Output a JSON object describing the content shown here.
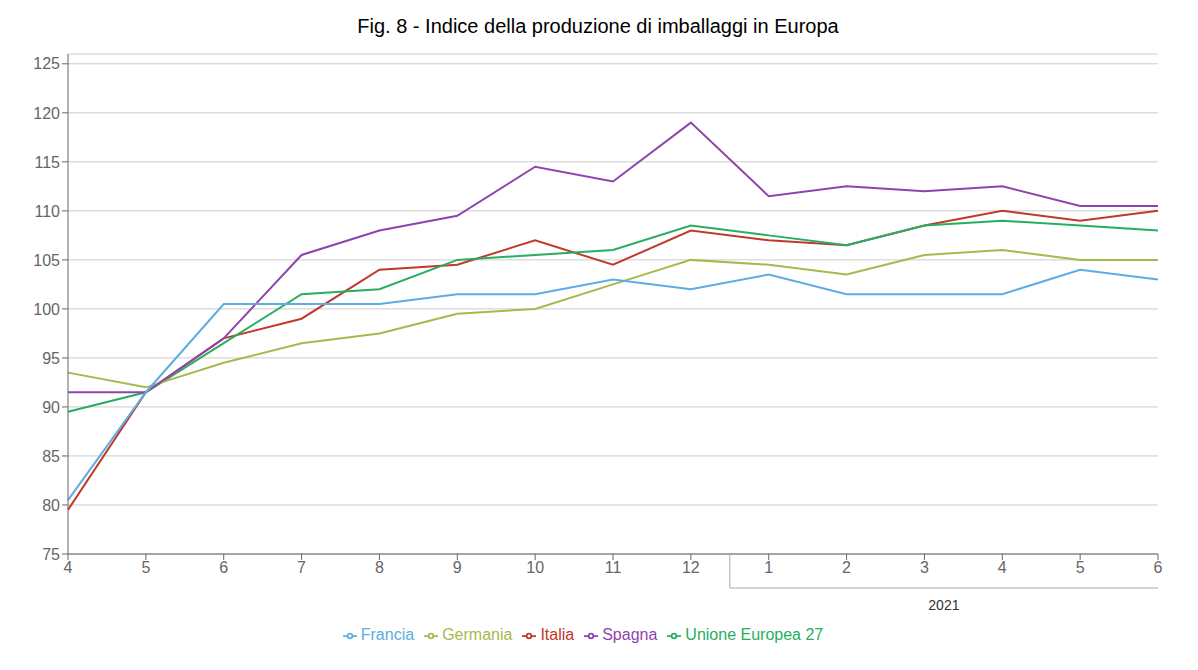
{
  "chart_data": {
    "type": "line",
    "title": "Fig. 8 - Indice della produzione di imballaggi in Europa",
    "categories": [
      "4",
      "5",
      "6",
      "7",
      "8",
      "9",
      "10",
      "11",
      "12",
      "1",
      "2",
      "3",
      "4",
      "5",
      "6"
    ],
    "series": [
      {
        "name": "Italia",
        "color": "#c0392b",
        "values": [
          79.5,
          91.5,
          97.0,
          99.0,
          104.0,
          104.5,
          107.0,
          104.5,
          108.0,
          107.0,
          106.5,
          108.5,
          110.0,
          109.0,
          110.0
        ]
      },
      {
        "name": "Unione Europea 27",
        "color": "#27ae60",
        "values": [
          89.5,
          91.5,
          96.5,
          101.5,
          102.0,
          105.0,
          105.5,
          106.0,
          108.5,
          107.5,
          106.5,
          108.5,
          109.0,
          108.5,
          108.0
        ]
      },
      {
        "name": "Germania",
        "color": "#a8b84b",
        "values": [
          93.5,
          92.0,
          94.5,
          96.5,
          97.5,
          99.5,
          100.0,
          102.5,
          105.0,
          104.5,
          103.5,
          105.5,
          106.0,
          105.0,
          105.0
        ]
      },
      {
        "name": "Spagna",
        "color": "#8e44ad",
        "values": [
          91.5,
          91.5,
          97.0,
          105.5,
          108.0,
          109.5,
          114.5,
          113.0,
          119.0,
          111.5,
          112.5,
          112.0,
          112.5,
          110.5,
          110.5
        ]
      },
      {
        "name": "Francia",
        "color": "#5dade2",
        "values": [
          80.5,
          91.5,
          100.5,
          100.5,
          100.5,
          101.5,
          101.5,
          103.0,
          102.0,
          103.5,
          101.5,
          101.5,
          101.5,
          104.0,
          103.0
        ]
      }
    ],
    "ylim": [
      75,
      126
    ],
    "yticks": [
      75,
      80,
      85,
      90,
      95,
      100,
      105,
      110,
      115,
      120,
      125
    ],
    "grid": true,
    "legend": "bottom",
    "annotations": [
      {
        "text": "2021",
        "start": 9,
        "end": 14
      }
    ]
  }
}
